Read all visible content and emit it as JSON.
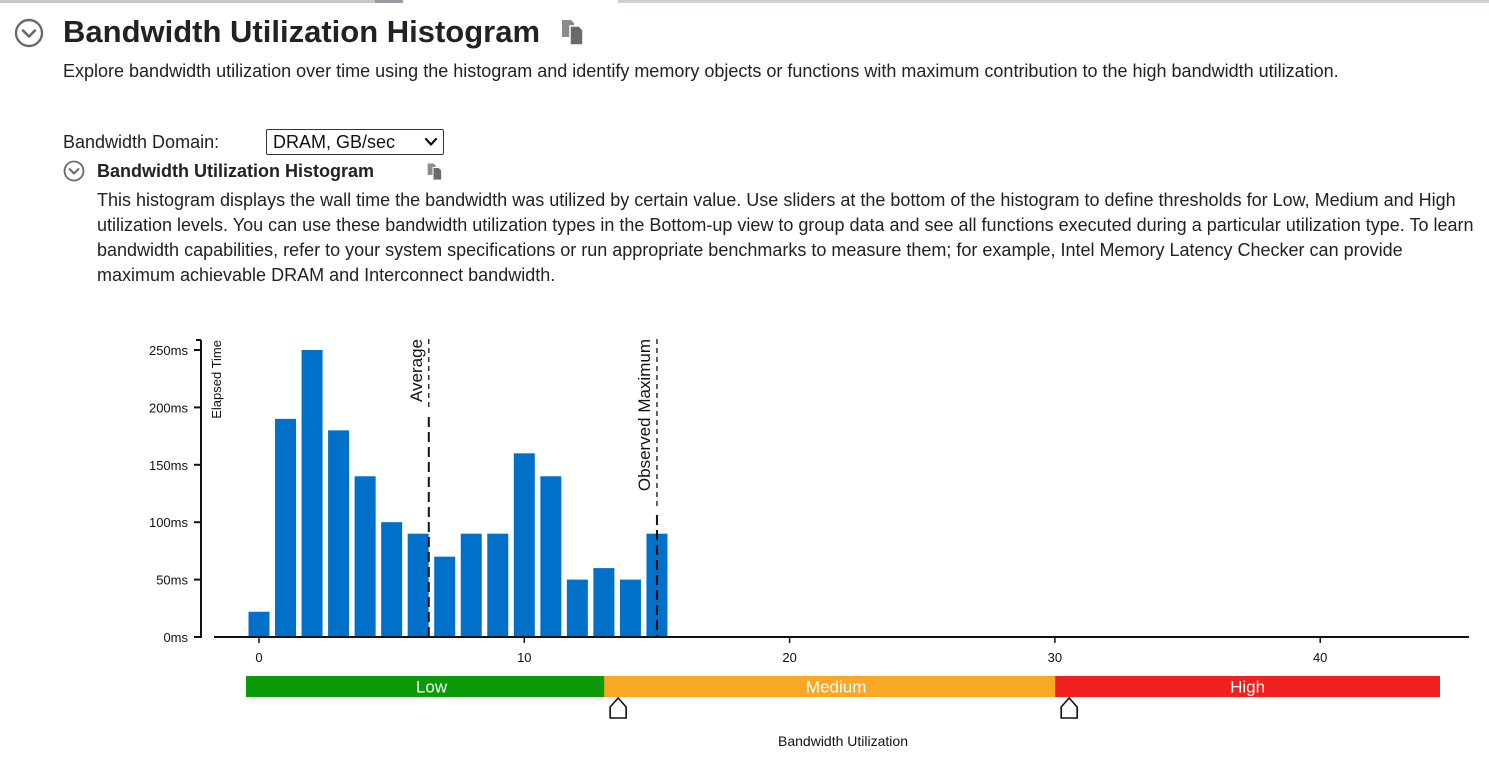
{
  "header": {
    "title": "Bandwidth Utilization Histogram",
    "description": "Explore bandwidth utilization over time using the histogram and identify memory objects or functions with maximum contribution to the high bandwidth utilization."
  },
  "domain": {
    "label": "Bandwidth Domain:",
    "selected": "DRAM, GB/sec"
  },
  "section": {
    "title": "Bandwidth Utilization Histogram",
    "description": "This histogram displays the wall time the bandwidth was utilized by certain value. Use sliders at the bottom of the histogram to define thresholds for Low, Medium and High utilization levels. You can use these bandwidth utilization types in the Bottom-up view to group data and see all functions executed during a particular utilization type. To learn bandwidth capabilities, refer to your system specifications or run appropriate benchmarks to measure them; for example, Intel Memory Latency Checker can provide maximum achievable DRAM and Interconnect bandwidth."
  },
  "colors": {
    "bar": "#0070c8",
    "low": "#0a9a0a",
    "medium": "#f9a825",
    "high": "#f02020",
    "icon": "#6a6a6a"
  },
  "icons": {
    "collapse": "chevron-circle-down-icon",
    "copy": "copy-icon",
    "select": "chevron-down-icon",
    "slider": "slider-handle-icon"
  },
  "chart_data": {
    "type": "bar",
    "title": "Bandwidth Utilization Histogram",
    "xlabel": "Bandwidth Utilization",
    "ylabel": "Elapsed Time",
    "x": [
      0,
      1,
      2,
      3,
      4,
      5,
      6,
      7,
      8,
      9,
      10,
      11,
      12,
      13,
      14,
      15
    ],
    "values": [
      22,
      190,
      250,
      180,
      140,
      100,
      90,
      70,
      90,
      90,
      160,
      140,
      50,
      60,
      50,
      90
    ],
    "value_unit": "ms",
    "xlim": [
      -0.5,
      45
    ],
    "ylim": [
      0,
      250
    ],
    "xticks": [
      0,
      10,
      20,
      30,
      40
    ],
    "yticks": [
      0,
      50,
      100,
      150,
      200,
      250
    ],
    "ytick_labels": [
      "0ms",
      "50ms",
      "100ms",
      "150ms",
      "200ms",
      "250ms"
    ],
    "markers": [
      {
        "label": "Average",
        "x": 6.4
      },
      {
        "label": "Observed Maximum",
        "x": 15
      }
    ],
    "utilization_levels": [
      {
        "label": "Low",
        "from": -0.5,
        "to": 13.5
      },
      {
        "label": "Medium",
        "from": 13.5,
        "to": 30.5
      },
      {
        "label": "High",
        "from": 30.5,
        "to": 45
      }
    ],
    "thresholds": [
      13.5,
      30.5
    ]
  }
}
